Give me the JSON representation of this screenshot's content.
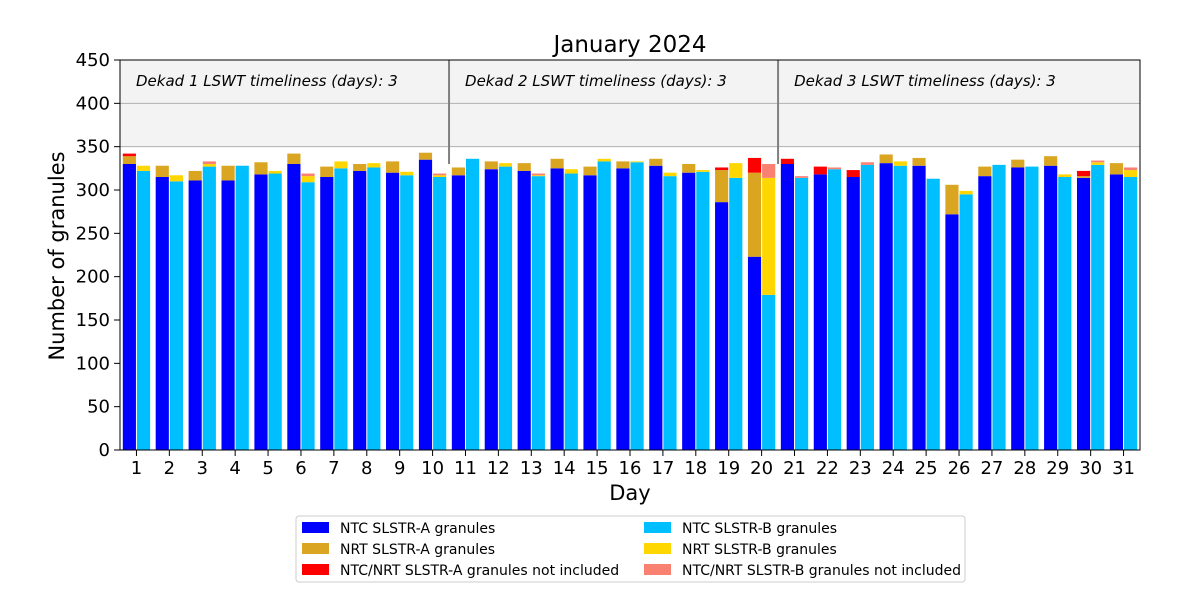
{
  "chart_data": {
    "type": "bar",
    "title": "January 2024",
    "xlabel": "Day",
    "ylabel": "Number of granules",
    "ylim": [
      0,
      450
    ],
    "yticks": [
      0,
      50,
      100,
      150,
      200,
      250,
      300,
      350,
      400,
      450
    ],
    "categories": [
      "1",
      "2",
      "3",
      "4",
      "5",
      "6",
      "7",
      "8",
      "9",
      "10",
      "11",
      "12",
      "13",
      "14",
      "15",
      "16",
      "17",
      "18",
      "19",
      "20",
      "21",
      "22",
      "23",
      "24",
      "25",
      "26",
      "27",
      "28",
      "29",
      "30",
      "31"
    ],
    "shaded_band": [
      350,
      450
    ],
    "gridlines": [
      350,
      400
    ],
    "dekads": [
      {
        "label": "Dekad 1 LSWT timeliness (days): 3",
        "start_day": 1,
        "end_day": 10
      },
      {
        "label": "Dekad 2 LSWT timeliness (days): 3",
        "start_day": 11,
        "end_day": 20
      },
      {
        "label": "Dekad 3 LSWT timeliness (days): 3",
        "start_day": 21,
        "end_day": 31
      }
    ],
    "series": [
      {
        "name": "NTC SLSTR-A granules",
        "sensor": "A",
        "color": "#0000ff",
        "values": [
          330,
          315,
          311,
          311,
          318,
          330,
          315,
          322,
          320,
          335,
          317,
          324,
          322,
          325,
          317,
          325,
          328,
          320,
          286,
          223,
          330,
          318,
          315,
          331,
          328,
          272,
          316,
          326,
          328,
          314,
          318
        ]
      },
      {
        "name": "NRT SLSTR-A granules",
        "sensor": "A",
        "color": "#daa520",
        "values": [
          9,
          13,
          11,
          17,
          14,
          12,
          12,
          8,
          13,
          8,
          9,
          9,
          9,
          11,
          10,
          8,
          8,
          10,
          37,
          97,
          0,
          0,
          0,
          10,
          9,
          34,
          11,
          9,
          11,
          2,
          13
        ]
      },
      {
        "name": "NTC/NRT SLSTR-A granules not included",
        "sensor": "A",
        "color": "#ff0000",
        "values": [
          3,
          0,
          0,
          0,
          0,
          0,
          0,
          0,
          0,
          0,
          0,
          0,
          0,
          0,
          0,
          0,
          0,
          0,
          3,
          17,
          6,
          9,
          8,
          0,
          0,
          0,
          0,
          0,
          0,
          6,
          0
        ]
      },
      {
        "name": "NTC SLSTR-B granules",
        "sensor": "B",
        "color": "#00bfff",
        "values": [
          322,
          310,
          327,
          328,
          319,
          309,
          325,
          326,
          317,
          315,
          336,
          327,
          316,
          319,
          333,
          332,
          316,
          321,
          314,
          179,
          314,
          324,
          329,
          328,
          313,
          295,
          329,
          327,
          315,
          329,
          315
        ]
      },
      {
        "name": "NRT SLSTR-B granules",
        "sensor": "B",
        "color": "#ffd700",
        "values": [
          6,
          7,
          3,
          0,
          3,
          7,
          8,
          5,
          4,
          2,
          0,
          4,
          1,
          5,
          3,
          1,
          4,
          2,
          17,
          135,
          0,
          0,
          0,
          5,
          0,
          4,
          0,
          0,
          3,
          3,
          8
        ]
      },
      {
        "name": "NTC/NRT SLSTR-B granules not included",
        "sensor": "B",
        "color": "#fa8072",
        "values": [
          0,
          0,
          3,
          0,
          0,
          3,
          0,
          0,
          0,
          2,
          0,
          0,
          2,
          0,
          0,
          0,
          0,
          0,
          0,
          16,
          2,
          2,
          3,
          0,
          0,
          0,
          0,
          0,
          0,
          2,
          3
        ]
      }
    ]
  }
}
